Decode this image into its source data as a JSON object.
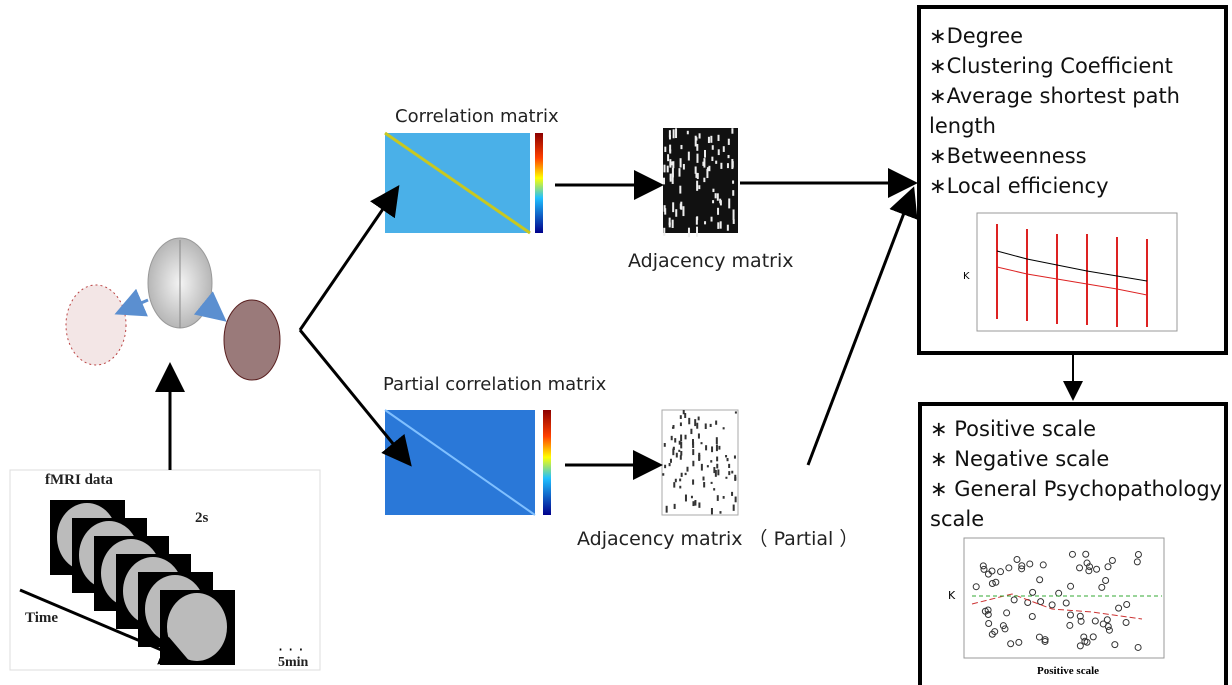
{
  "correlation_label": "Correlation matrix",
  "adjacency_label": "Adjacency matrix",
  "partial_correlation_label": "Partial correlation matrix",
  "partial_adjacency_label": "Adjacency matrix （ Partial ）",
  "fmri": {
    "title": "fMRI data",
    "interval": "2s",
    "time_label": "Time",
    "duration": "5min"
  },
  "metrics_box": {
    "items": [
      "∗Degree",
      "∗Clustering Coefficient",
      "∗Average shortest path length",
      "∗Betweenness",
      "∗Local efficiency"
    ],
    "y_label": "K"
  },
  "scales_box": {
    "items": [
      "∗ Positive scale",
      "∗ Negative scale",
      "∗ General Psychopathology scale"
    ],
    "y_label": "K",
    "x_label": "Positive scale"
  }
}
